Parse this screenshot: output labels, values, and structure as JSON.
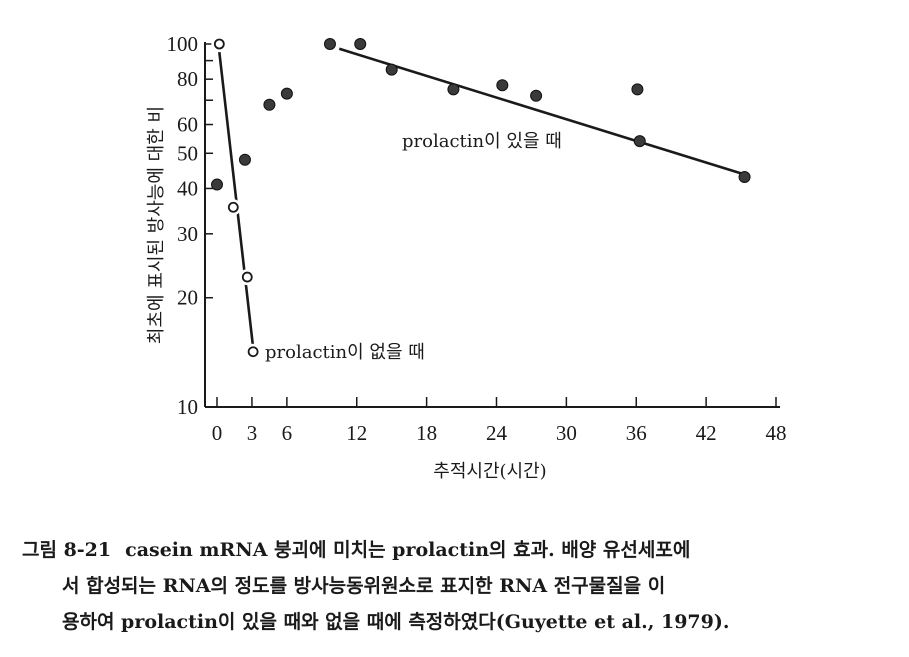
{
  "chart_data": {
    "type": "scatter",
    "title": "",
    "xlabel": "추적시간(시간)",
    "ylabel": "최초에 표시된 방사능에 대한 비",
    "xlim": [
      0,
      48
    ],
    "ylim": [
      10,
      100
    ],
    "yscale": "log",
    "x_ticks": [
      0,
      3,
      6,
      12,
      18,
      24,
      30,
      36,
      42,
      48
    ],
    "y_ticks": [
      10,
      20,
      30,
      40,
      50,
      60,
      80,
      100
    ],
    "series": [
      {
        "name": "prolactin이 있을 때",
        "marker": "filled",
        "color": "#3a3a3a",
        "points": [
          [
            0,
            41
          ],
          [
            2.4,
            48
          ],
          [
            4.5,
            68
          ],
          [
            6,
            73
          ],
          [
            9.7,
            100
          ],
          [
            12.3,
            100
          ],
          [
            15,
            85
          ],
          [
            20.3,
            75
          ],
          [
            24.5,
            77
          ],
          [
            27.4,
            72
          ],
          [
            36.1,
            75
          ],
          [
            36.3,
            54
          ],
          [
            45.3,
            43
          ]
        ],
        "fit_line": [
          [
            10.5,
            97
          ],
          [
            45,
            44
          ]
        ]
      },
      {
        "name": "prolactin이 없을 때",
        "marker": "open",
        "color": "#1a1a1a",
        "points": [
          [
            0.2,
            100
          ],
          [
            1.4,
            35.5
          ],
          [
            2.6,
            22.8
          ],
          [
            3.1,
            14.2
          ]
        ],
        "fit_line": [
          [
            0.2,
            95
          ],
          [
            3.1,
            14.6
          ]
        ]
      }
    ],
    "annotations": [
      "prolactin이 있을 때",
      "prolactin이 없을 때"
    ],
    "grid": false
  },
  "caption": {
    "number": "그림 8-21",
    "line1": "casein mRNA 붕괴에 미치는  prolactin의 효과. 배양 유선세포에",
    "line2": "서 합성되는 RNA의 정도를 방사능동위원소로 표지한 RNA 전구물질을 이",
    "line3": "용하여 prolactin이 있을 때와 없을 때에 측정하였다(Guyette et al., 1979)."
  }
}
